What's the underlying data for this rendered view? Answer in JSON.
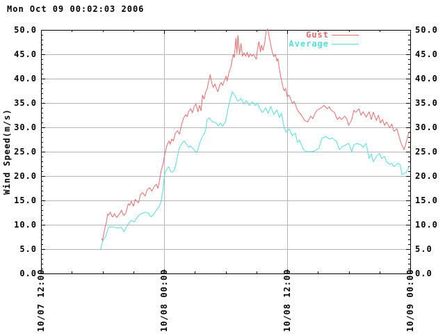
{
  "title": "Mon Oct 09 00:02:03 2006",
  "colors": {
    "gust": "#e56a6a",
    "average": "#52dede",
    "grid": "#b5b5b5",
    "axis": "#000000",
    "background": "#ffffff"
  },
  "chart_data": {
    "type": "line",
    "title": "Mon Oct 09 00:02:03 2006",
    "ylabel": "Wind Speed(m/s)",
    "xlabel": "",
    "ylim": [
      0,
      50
    ],
    "y_major_step": 5,
    "y_minor_step": 1,
    "y_tick_labels": [
      "0.0",
      "5.0",
      "10.0",
      "15.0",
      "20.0",
      "25.0",
      "30.0",
      "35.0",
      "40.0",
      "45.0",
      "50.0"
    ],
    "x_range_hours": [
      0,
      36
    ],
    "x_major_ticks_hours": [
      0,
      12,
      24,
      36
    ],
    "x_minor_step_hours": 3,
    "x_tick_labels": [
      "10/07 12:00",
      "10/08 00:00",
      "10/08 12:00",
      "10/09 00:00"
    ],
    "grid": "on",
    "legend_position": "top-right-inside",
    "series": [
      {
        "name": "Gust",
        "color": "#e56a6a",
        "points": [
          [
            5.9,
            7.2
          ],
          [
            6.0,
            6.8
          ],
          [
            6.1,
            8.0
          ],
          [
            6.25,
            9.5
          ],
          [
            6.4,
            10.8
          ],
          [
            6.5,
            12.2
          ],
          [
            6.6,
            12.0
          ],
          [
            6.75,
            12.6
          ],
          [
            6.9,
            11.8
          ],
          [
            7.0,
            11.6
          ],
          [
            7.15,
            12.3
          ],
          [
            7.3,
            11.7
          ],
          [
            7.4,
            11.5
          ],
          [
            7.55,
            12.0
          ],
          [
            7.65,
            12.2
          ],
          [
            7.85,
            13.0
          ],
          [
            8.0,
            12.1
          ],
          [
            8.1,
            11.9
          ],
          [
            8.3,
            12.6
          ],
          [
            8.5,
            14.3
          ],
          [
            8.65,
            14.0
          ],
          [
            8.8,
            14.8
          ],
          [
            9.0,
            13.8
          ],
          [
            9.2,
            15.2
          ],
          [
            9.35,
            14.8
          ],
          [
            9.5,
            14.5
          ],
          [
            9.7,
            16.2
          ],
          [
            9.9,
            16.6
          ],
          [
            10.15,
            15.9
          ],
          [
            10.35,
            17.2
          ],
          [
            10.6,
            17.6
          ],
          [
            10.8,
            16.9
          ],
          [
            11.05,
            17.9
          ],
          [
            11.25,
            18.3
          ],
          [
            11.4,
            17.5
          ],
          [
            11.55,
            19.0
          ],
          [
            11.7,
            21.0
          ],
          [
            11.9,
            22.5
          ],
          [
            12.07,
            24.5
          ],
          [
            12.3,
            26.5
          ],
          [
            12.5,
            27.2
          ],
          [
            12.6,
            26.5
          ],
          [
            12.75,
            27.6
          ],
          [
            12.9,
            27.2
          ],
          [
            13.1,
            28.8
          ],
          [
            13.3,
            29.3
          ],
          [
            13.5,
            28.6
          ],
          [
            13.7,
            30.5
          ],
          [
            13.9,
            31.9
          ],
          [
            14.1,
            32.6
          ],
          [
            14.25,
            32.2
          ],
          [
            14.4,
            33.3
          ],
          [
            14.6,
            33.8
          ],
          [
            14.75,
            33.0
          ],
          [
            14.95,
            34.3
          ],
          [
            15.1,
            34.8
          ],
          [
            15.3,
            33.2
          ],
          [
            15.45,
            34.5
          ],
          [
            15.6,
            33.4
          ],
          [
            15.75,
            36.6
          ],
          [
            15.9,
            35.8
          ],
          [
            16.05,
            37.2
          ],
          [
            16.2,
            37.9
          ],
          [
            16.35,
            39.5
          ],
          [
            16.5,
            40.8
          ],
          [
            16.65,
            39.0
          ],
          [
            16.8,
            38.2
          ],
          [
            16.95,
            38.9
          ],
          [
            17.1,
            38.0
          ],
          [
            17.25,
            37.3
          ],
          [
            17.4,
            38.5
          ],
          [
            17.55,
            39.2
          ],
          [
            17.7,
            38.6
          ],
          [
            17.9,
            39.7
          ],
          [
            18.05,
            40.5
          ],
          [
            18.15,
            39.5
          ],
          [
            18.35,
            41.5
          ],
          [
            18.5,
            42.3
          ],
          [
            18.65,
            44.0
          ],
          [
            18.75,
            45.0
          ],
          [
            18.85,
            44.3
          ],
          [
            19.0,
            48.3
          ],
          [
            19.1,
            45.2
          ],
          [
            19.2,
            48.9
          ],
          [
            19.35,
            45.0
          ],
          [
            19.5,
            47.2
          ],
          [
            19.65,
            44.6
          ],
          [
            19.8,
            45.3
          ],
          [
            19.95,
            44.6
          ],
          [
            20.1,
            45.4
          ],
          [
            20.25,
            44.4
          ],
          [
            20.4,
            45.1
          ],
          [
            20.55,
            44.6
          ],
          [
            20.7,
            45.0
          ],
          [
            20.85,
            44.5
          ],
          [
            21.0,
            44.0
          ],
          [
            21.1,
            45.9
          ],
          [
            21.25,
            47.6
          ],
          [
            21.4,
            45.5
          ],
          [
            21.5,
            46.9
          ],
          [
            21.65,
            45.8
          ],
          [
            21.8,
            47.3
          ],
          [
            21.95,
            49.8
          ],
          [
            22.1,
            50.2
          ],
          [
            22.25,
            48.6
          ],
          [
            22.4,
            46.9
          ],
          [
            22.55,
            45.5
          ],
          [
            22.7,
            44.5
          ],
          [
            22.85,
            45.0
          ],
          [
            23.0,
            43.6
          ],
          [
            23.1,
            44.1
          ],
          [
            23.25,
            41.9
          ],
          [
            23.4,
            40.2
          ],
          [
            23.55,
            38.6
          ],
          [
            23.7,
            37.5
          ],
          [
            23.85,
            38.0
          ],
          [
            24.0,
            36.3
          ],
          [
            24.2,
            36.6
          ],
          [
            24.5,
            34.9
          ],
          [
            24.7,
            35.3
          ],
          [
            25.0,
            33.5
          ],
          [
            25.4,
            32.5
          ],
          [
            25.7,
            31.4
          ],
          [
            26.0,
            31.1
          ],
          [
            26.3,
            32.3
          ],
          [
            26.5,
            31.8
          ],
          [
            26.7,
            32.8
          ],
          [
            26.9,
            33.5
          ],
          [
            27.3,
            34.0
          ],
          [
            27.6,
            34.5
          ],
          [
            27.9,
            33.8
          ],
          [
            28.1,
            34.2
          ],
          [
            28.3,
            33.5
          ],
          [
            28.6,
            33.1
          ],
          [
            28.9,
            31.6
          ],
          [
            29.1,
            32.1
          ],
          [
            29.3,
            31.6
          ],
          [
            29.6,
            32.3
          ],
          [
            29.8,
            31.8
          ],
          [
            30.0,
            30.4
          ],
          [
            30.3,
            31.6
          ],
          [
            30.5,
            33.5
          ],
          [
            30.7,
            33.1
          ],
          [
            31.0,
            33.8
          ],
          [
            31.2,
            32.5
          ],
          [
            31.4,
            33.2
          ],
          [
            31.7,
            32.1
          ],
          [
            32.0,
            33.2
          ],
          [
            32.2,
            31.6
          ],
          [
            32.4,
            33.1
          ],
          [
            32.7,
            31.4
          ],
          [
            32.9,
            32.5
          ],
          [
            33.1,
            30.9
          ],
          [
            33.3,
            31.6
          ],
          [
            33.5,
            30.4
          ],
          [
            33.7,
            31.1
          ],
          [
            34.0,
            29.9
          ],
          [
            34.2,
            30.7
          ],
          [
            34.4,
            29.2
          ],
          [
            34.7,
            29.7
          ],
          [
            34.9,
            28.2
          ],
          [
            35.1,
            26.8
          ],
          [
            35.4,
            25.4
          ],
          [
            35.6,
            26.8
          ],
          [
            35.8,
            28.5
          ],
          [
            36.0,
            29.3
          ]
        ]
      },
      {
        "name": "Average",
        "color": "#52dede",
        "points": [
          [
            5.8,
            4.8
          ],
          [
            5.95,
            6.2
          ],
          [
            6.1,
            7.0
          ],
          [
            6.3,
            7.6
          ],
          [
            6.6,
            9.5
          ],
          [
            7.0,
            9.6
          ],
          [
            7.4,
            9.3
          ],
          [
            7.8,
            9.5
          ],
          [
            8.1,
            8.6
          ],
          [
            8.45,
            10.0
          ],
          [
            8.8,
            10.9
          ],
          [
            9.1,
            10.6
          ],
          [
            9.5,
            11.9
          ],
          [
            9.8,
            12.3
          ],
          [
            10.2,
            12.6
          ],
          [
            10.5,
            12.3
          ],
          [
            10.7,
            11.6
          ],
          [
            11.0,
            12.2
          ],
          [
            11.25,
            13.0
          ],
          [
            11.5,
            13.6
          ],
          [
            11.7,
            14.8
          ],
          [
            11.85,
            16.5
          ],
          [
            12.0,
            19.5
          ],
          [
            12.1,
            20.8
          ],
          [
            12.3,
            21.5
          ],
          [
            12.45,
            21.9
          ],
          [
            12.65,
            20.9
          ],
          [
            12.8,
            20.8
          ],
          [
            13.0,
            21.2
          ],
          [
            13.2,
            22.9
          ],
          [
            13.35,
            24.5
          ],
          [
            13.5,
            25.8
          ],
          [
            13.6,
            26.2
          ],
          [
            13.8,
            26.9
          ],
          [
            13.95,
            27.2
          ],
          [
            14.2,
            26.5
          ],
          [
            14.4,
            25.9
          ],
          [
            14.55,
            26.2
          ],
          [
            14.75,
            25.8
          ],
          [
            15.0,
            25.2
          ],
          [
            15.15,
            24.8
          ],
          [
            15.3,
            25.5
          ],
          [
            15.5,
            26.9
          ],
          [
            15.7,
            28.0
          ],
          [
            15.9,
            28.6
          ],
          [
            16.05,
            29.4
          ],
          [
            16.2,
            31.6
          ],
          [
            16.4,
            31.9
          ],
          [
            16.7,
            31.2
          ],
          [
            17.05,
            30.9
          ],
          [
            17.3,
            30.3
          ],
          [
            17.5,
            30.9
          ],
          [
            17.7,
            30.2
          ],
          [
            18.0,
            31.3
          ],
          [
            18.3,
            34.5
          ],
          [
            18.5,
            36.2
          ],
          [
            18.65,
            37.3
          ],
          [
            18.9,
            36.5
          ],
          [
            19.2,
            35.3
          ],
          [
            19.5,
            35.9
          ],
          [
            19.8,
            34.8
          ],
          [
            20.0,
            35.5
          ],
          [
            20.3,
            34.5
          ],
          [
            20.6,
            35.2
          ],
          [
            20.9,
            34.5
          ],
          [
            21.1,
            35.0
          ],
          [
            21.3,
            34.0
          ],
          [
            21.6,
            33.0
          ],
          [
            21.9,
            34.0
          ],
          [
            22.15,
            32.9
          ],
          [
            22.4,
            34.3
          ],
          [
            22.7,
            32.6
          ],
          [
            23.0,
            33.6
          ],
          [
            23.25,
            32.0
          ],
          [
            23.45,
            32.9
          ],
          [
            23.7,
            30.0
          ],
          [
            23.9,
            29.0
          ],
          [
            24.2,
            29.7
          ],
          [
            24.5,
            28.3
          ],
          [
            24.8,
            28.8
          ],
          [
            25.0,
            26.9
          ],
          [
            25.2,
            27.4
          ],
          [
            25.6,
            25.4
          ],
          [
            25.9,
            25.0
          ],
          [
            26.4,
            25.0
          ],
          [
            26.7,
            25.2
          ],
          [
            27.1,
            25.7
          ],
          [
            27.4,
            27.8
          ],
          [
            27.8,
            28.1
          ],
          [
            28.1,
            27.6
          ],
          [
            28.4,
            27.8
          ],
          [
            28.8,
            27.1
          ],
          [
            29.1,
            25.4
          ],
          [
            29.3,
            25.9
          ],
          [
            29.7,
            26.4
          ],
          [
            30.0,
            26.7
          ],
          [
            30.3,
            25.0
          ],
          [
            30.5,
            26.4
          ],
          [
            30.8,
            26.7
          ],
          [
            31.2,
            26.4
          ],
          [
            31.4,
            25.9
          ],
          [
            31.7,
            26.7
          ],
          [
            32.0,
            23.6
          ],
          [
            32.2,
            24.6
          ],
          [
            32.4,
            22.9
          ],
          [
            32.7,
            24.0
          ],
          [
            33.0,
            24.7
          ],
          [
            33.2,
            23.6
          ],
          [
            33.5,
            24.0
          ],
          [
            33.7,
            22.9
          ],
          [
            34.0,
            22.4
          ],
          [
            34.2,
            22.6
          ],
          [
            34.4,
            21.9
          ],
          [
            34.8,
            22.6
          ],
          [
            35.0,
            22.4
          ],
          [
            35.2,
            20.3
          ],
          [
            35.6,
            20.7
          ],
          [
            35.9,
            21.9
          ],
          [
            36.0,
            22.0
          ]
        ]
      }
    ]
  },
  "legend": {
    "gust_label": "Gust",
    "average_label": "Average"
  }
}
